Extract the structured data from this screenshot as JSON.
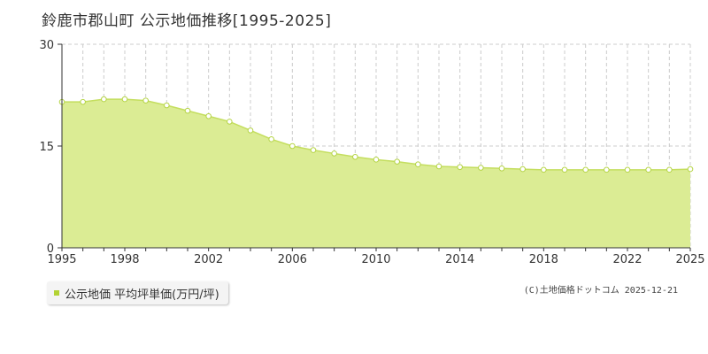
{
  "title": "鈴鹿市郡山町 公示地価推移[1995-2025]",
  "legend": {
    "label": "公示地価 平均坪単価(万円/坪)",
    "color": "#b3d334"
  },
  "credit": "(C)土地価格ドットコム 2025-12-21",
  "chart_data": {
    "type": "area",
    "title": "鈴鹿市郡山町 公示地価推移[1995-2025]",
    "xlabel": "",
    "ylabel": "",
    "x": [
      1995,
      1996,
      1997,
      1998,
      1999,
      2000,
      2001,
      2002,
      2003,
      2004,
      2005,
      2006,
      2007,
      2008,
      2009,
      2010,
      2011,
      2012,
      2013,
      2014,
      2015,
      2016,
      2017,
      2018,
      2019,
      2020,
      2021,
      2022,
      2023,
      2024,
      2025
    ],
    "series": [
      {
        "name": "公示地価 平均坪単価(万円/坪)",
        "values": [
          21.5,
          21.5,
          21.9,
          21.9,
          21.7,
          21.0,
          20.2,
          19.4,
          18.6,
          17.3,
          16.0,
          15.0,
          14.4,
          13.9,
          13.4,
          13.0,
          12.7,
          12.3,
          12.0,
          11.9,
          11.8,
          11.7,
          11.6,
          11.5,
          11.5,
          11.5,
          11.5,
          11.5,
          11.5,
          11.5,
          11.6
        ]
      }
    ],
    "xticks": [
      "1995",
      "1998",
      "2002",
      "2006",
      "2010",
      "2014",
      "2018",
      "2022",
      "2025"
    ],
    "yticks": [
      "0",
      "15",
      "30"
    ],
    "ylim": [
      0,
      30
    ],
    "xlim": [
      1995,
      2025
    ],
    "grid": true,
    "legend_position": "bottom-left",
    "colors": {
      "fill": "#dbec94",
      "line": "#c4de5e",
      "point_fill": "#ffffff",
      "point_stroke": "#b5d446",
      "grid": "#cccccc"
    }
  }
}
